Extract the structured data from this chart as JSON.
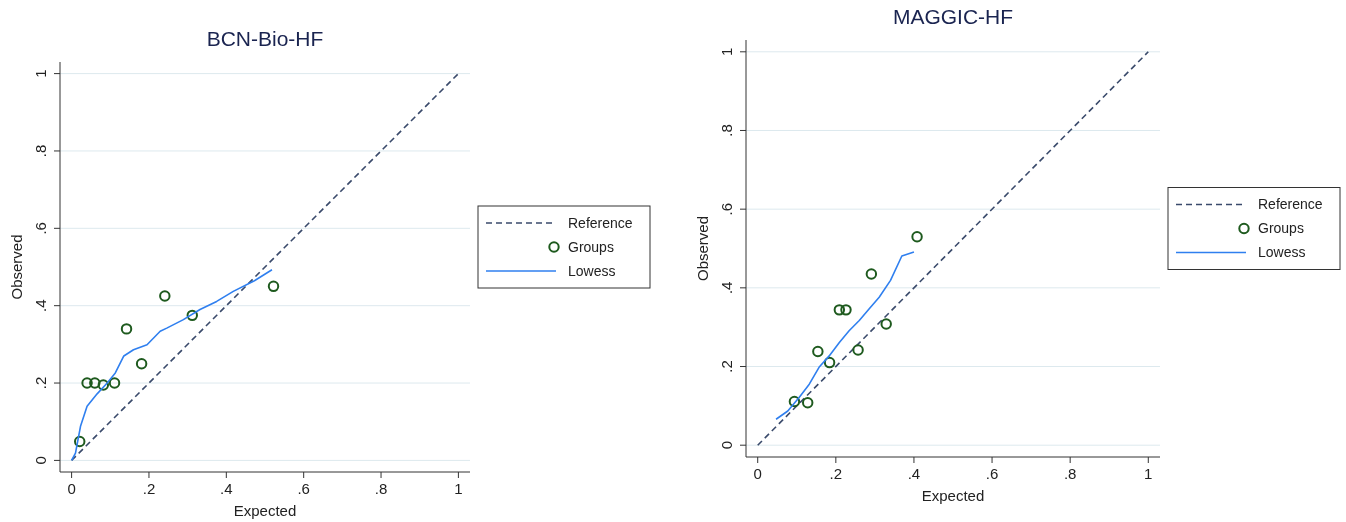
{
  "chart_data": [
    {
      "type": "line",
      "title": "BCN-Bio-HF",
      "xlabel": "Expected",
      "ylabel": "Observed",
      "xlim": [
        -0.03,
        1.03
      ],
      "ylim": [
        -0.03,
        1.03
      ],
      "xticks": [
        {
          "value": 0,
          "label": "0"
        },
        {
          "value": 0.2,
          "label": ".2"
        },
        {
          "value": 0.4,
          "label": ".4"
        },
        {
          "value": 0.6,
          "label": ".6"
        },
        {
          "value": 0.8,
          "label": ".8"
        },
        {
          "value": 1,
          "label": "1"
        }
      ],
      "yticks": [
        {
          "value": 0,
          "label": "0"
        },
        {
          "value": 0.2,
          "label": ".2"
        },
        {
          "value": 0.4,
          "label": ".4"
        },
        {
          "value": 0.6,
          "label": ".6"
        },
        {
          "value": 0.8,
          "label": ".8"
        },
        {
          "value": 1,
          "label": "1"
        }
      ],
      "grid": "y",
      "legend": "right",
      "series": [
        {
          "name": "Reference",
          "type": "line",
          "color": "#3a4a6b",
          "line_style": "dashed",
          "marker": "none",
          "x": [
            0,
            1
          ],
          "values": [
            0,
            1
          ]
        },
        {
          "name": "Groups",
          "type": "scatter",
          "color": "#1e5a1e",
          "marker": "circle",
          "x": [
            0.021,
            0.04,
            0.06,
            0.082,
            0.111,
            0.142,
            0.181,
            0.241,
            0.312,
            0.522
          ],
          "values": [
            0.049,
            0.2,
            0.2,
            0.195,
            0.2,
            0.34,
            0.25,
            0.425,
            0.375,
            0.45
          ]
        },
        {
          "name": "Lowess",
          "type": "line",
          "color": "#2f7fef",
          "line_style": "solid",
          "marker": "none",
          "x": [
            0,
            0.01,
            0.023,
            0.04,
            0.066,
            0.092,
            0.113,
            0.135,
            0.16,
            0.195,
            0.229,
            0.246,
            0.289,
            0.332,
            0.375,
            0.418,
            0.47,
            0.518
          ],
          "values": [
            0,
            0.019,
            0.088,
            0.14,
            0.172,
            0.2,
            0.226,
            0.27,
            0.286,
            0.299,
            0.334,
            0.342,
            0.364,
            0.39,
            0.411,
            0.437,
            0.463,
            0.493
          ]
        }
      ]
    },
    {
      "type": "line",
      "title": "MAGGIC-HF",
      "xlabel": "Expected",
      "ylabel": "Observed",
      "xlim": [
        -0.03,
        1.03
      ],
      "ylim": [
        -0.03,
        1.03
      ],
      "xticks": [
        {
          "value": 0,
          "label": "0"
        },
        {
          "value": 0.2,
          "label": ".2"
        },
        {
          "value": 0.4,
          "label": ".4"
        },
        {
          "value": 0.6,
          "label": ".6"
        },
        {
          "value": 0.8,
          "label": ".8"
        },
        {
          "value": 1,
          "label": "1"
        }
      ],
      "yticks": [
        {
          "value": 0,
          "label": "0"
        },
        {
          "value": 0.2,
          "label": ".2"
        },
        {
          "value": 0.4,
          "label": ".4"
        },
        {
          "value": 0.6,
          "label": ".6"
        },
        {
          "value": 0.8,
          "label": ".8"
        },
        {
          "value": 1,
          "label": "1"
        }
      ],
      "grid": "y",
      "legend": "right",
      "series": [
        {
          "name": "Reference",
          "type": "line",
          "color": "#3a4a6b",
          "line_style": "dashed",
          "marker": "none",
          "x": [
            0,
            1
          ],
          "values": [
            0,
            1
          ]
        },
        {
          "name": "Groups",
          "type": "scatter",
          "color": "#1e5a1e",
          "marker": "circle",
          "x": [
            0.094,
            0.128,
            0.154,
            0.184,
            0.209,
            0.226,
            0.257,
            0.291,
            0.329,
            0.408
          ],
          "values": [
            0.111,
            0.108,
            0.238,
            0.21,
            0.344,
            0.344,
            0.242,
            0.435,
            0.308,
            0.53
          ]
        },
        {
          "name": "Lowess",
          "type": "line",
          "color": "#2f7fef",
          "line_style": "solid",
          "marker": "none",
          "x": [
            0.047,
            0.077,
            0.106,
            0.132,
            0.157,
            0.183,
            0.209,
            0.234,
            0.26,
            0.285,
            0.311,
            0.34,
            0.369,
            0.4
          ],
          "values": [
            0.066,
            0.087,
            0.121,
            0.155,
            0.198,
            0.227,
            0.261,
            0.291,
            0.317,
            0.346,
            0.376,
            0.419,
            0.481,
            0.491
          ]
        }
      ]
    }
  ]
}
